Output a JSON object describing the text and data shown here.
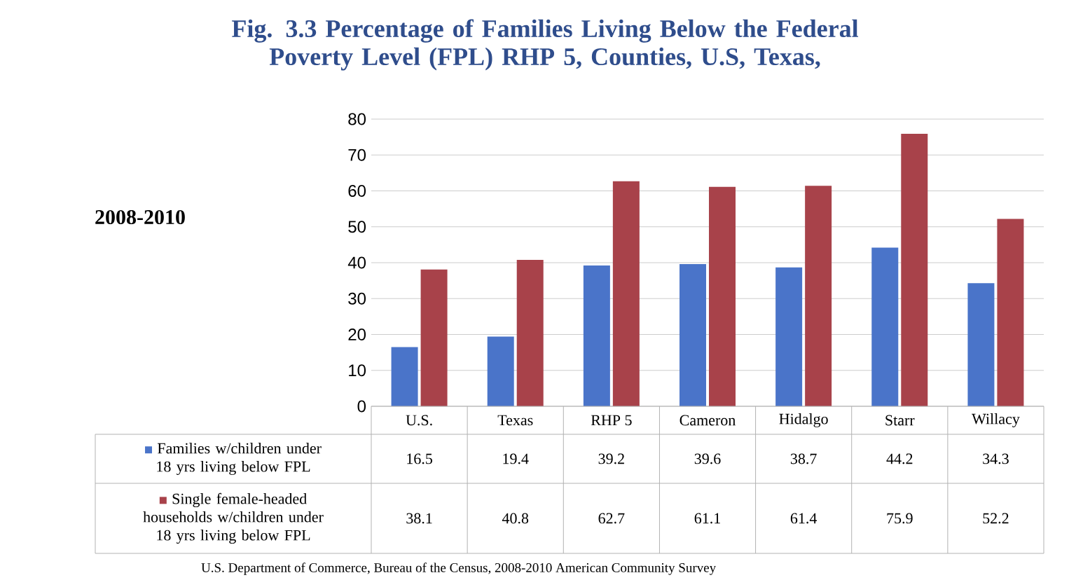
{
  "chart_data": {
    "type": "bar",
    "title": "Fig. 3.3 Percentage of Families Living Below the Federal Poverty Level (FPL) RHP 5, Counties, U.S, Texas,",
    "subtitle": "2008-2010",
    "categories": [
      "U.S.",
      "Texas",
      "RHP 5",
      "Cameron",
      "Hidalgo",
      "Starr",
      "Willacy"
    ],
    "series": [
      {
        "name": "Families w/children under 18 yrs living below FPL",
        "color": "#4a74c9",
        "values": [
          16.5,
          19.4,
          39.2,
          39.6,
          38.7,
          44.2,
          34.3
        ]
      },
      {
        "name": "Single female-headed households w/children under 18 yrs living below FPL",
        "color": "#a8424a",
        "values": [
          38.1,
          40.8,
          62.7,
          61.1,
          61.4,
          75.9,
          52.2
        ]
      }
    ],
    "ylim": [
      0,
      80
    ],
    "yticks": [
      0,
      10,
      20,
      30,
      40,
      50,
      60,
      70,
      80
    ],
    "grid": "y",
    "legend": "bottom",
    "data_labels": true,
    "annotations": [
      "U.S. Department of Commerce, Bureau of the Census, 2008-2010 American Community Survey"
    ]
  }
}
